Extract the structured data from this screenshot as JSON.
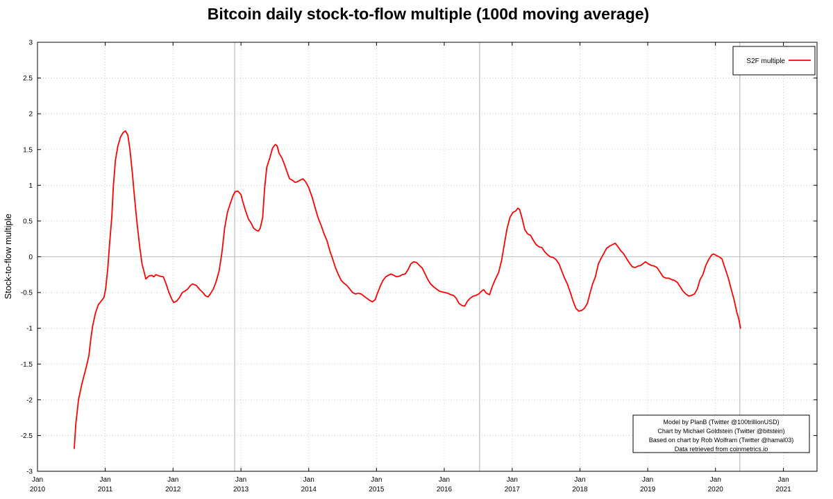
{
  "chart_data": {
    "type": "line",
    "title": "Bitcoin daily stock-to-flow multiple (100d moving average)",
    "xlabel": "",
    "ylabel": "Stock-to-flow multiple",
    "x_range": [
      "2010-01-01",
      "2021-07-01"
    ],
    "ylim": [
      -3,
      3
    ],
    "y_ticks": [
      "3",
      "2.5",
      "2",
      "1.5",
      "1",
      "0.5",
      "0",
      "-0.5",
      "-1",
      "-1.5",
      "-2",
      "-2.5",
      "-3"
    ],
    "y_tick_values": [
      3,
      2.5,
      2,
      1.5,
      1,
      0.5,
      0,
      -0.5,
      -1,
      -1.5,
      -2,
      -2.5,
      -3
    ],
    "x_ticks": [
      {
        "month": "Jan",
        "year": "2010",
        "date": "2010-01-01"
      },
      {
        "month": "Jan",
        "year": "2011",
        "date": "2011-01-01"
      },
      {
        "month": "Jan",
        "year": "2012",
        "date": "2012-01-01"
      },
      {
        "month": "Jan",
        "year": "2013",
        "date": "2013-01-01"
      },
      {
        "month": "Jan",
        "year": "2014",
        "date": "2014-01-01"
      },
      {
        "month": "Jan",
        "year": "2015",
        "date": "2015-01-01"
      },
      {
        "month": "Jan",
        "year": "2016",
        "date": "2016-01-01"
      },
      {
        "month": "Jan",
        "year": "2017",
        "date": "2017-01-01"
      },
      {
        "month": "Jan",
        "year": "2018",
        "date": "2018-01-01"
      },
      {
        "month": "Jan",
        "year": "2019",
        "date": "2019-01-01"
      },
      {
        "month": "Jan",
        "year": "2020",
        "date": "2020-01-01"
      },
      {
        "month": "Jan",
        "year": "2021",
        "date": "2021-01-01"
      }
    ],
    "grid": true,
    "zero_line": true,
    "halving_lines": [
      "2012-11-28",
      "2016-07-09",
      "2020-05-11"
    ],
    "legend": {
      "position": "top-right",
      "entries": [
        {
          "name": "S2F multiple",
          "color": "#ff0000"
        }
      ]
    },
    "annotation_lines": [
      "Model by PlanB (Twitter @100trillionUSD)",
      "Chart by Michael Goldstein (Twitter @bitstein)",
      "Based on chart by Rob Wolfram (Twitter @hamal03)",
      "Data retrieved from coinmetrics.io"
    ],
    "series": [
      {
        "name": "S2F multiple",
        "color": "#ff0000",
        "points": [
          [
            "2010-07-18",
            -2.68
          ],
          [
            "2010-07-26",
            -2.35
          ],
          [
            "2010-08-10",
            -2.0
          ],
          [
            "2010-08-28",
            -1.78
          ],
          [
            "2010-09-20",
            -1.55
          ],
          [
            "2010-10-05",
            -1.38
          ],
          [
            "2010-10-15",
            -1.15
          ],
          [
            "2010-10-25",
            -0.97
          ],
          [
            "2010-11-10",
            -0.78
          ],
          [
            "2010-11-25",
            -0.67
          ],
          [
            "2010-12-10",
            -0.62
          ],
          [
            "2010-12-25",
            -0.57
          ],
          [
            "2011-01-03",
            -0.45
          ],
          [
            "2011-01-15",
            -0.15
          ],
          [
            "2011-01-25",
            0.2
          ],
          [
            "2011-02-05",
            0.55
          ],
          [
            "2011-02-14",
            1.0
          ],
          [
            "2011-02-25",
            1.35
          ],
          [
            "2011-03-10",
            1.55
          ],
          [
            "2011-03-25",
            1.68
          ],
          [
            "2011-04-08",
            1.74
          ],
          [
            "2011-04-20",
            1.76
          ],
          [
            "2011-05-03",
            1.7
          ],
          [
            "2011-05-14",
            1.5
          ],
          [
            "2011-05-28",
            1.15
          ],
          [
            "2011-06-05",
            0.9
          ],
          [
            "2011-06-20",
            0.5
          ],
          [
            "2011-07-05",
            0.15
          ],
          [
            "2011-07-18",
            -0.1
          ],
          [
            "2011-07-30",
            -0.22
          ],
          [
            "2011-08-08",
            -0.31
          ],
          [
            "2011-08-23",
            -0.27
          ],
          [
            "2011-09-08",
            -0.26
          ],
          [
            "2011-09-20",
            -0.28
          ],
          [
            "2011-10-01",
            -0.25
          ],
          [
            "2011-10-20",
            -0.27
          ],
          [
            "2011-11-10",
            -0.28
          ],
          [
            "2011-11-25",
            -0.38
          ],
          [
            "2011-12-10",
            -0.5
          ],
          [
            "2011-12-25",
            -0.59
          ],
          [
            "2012-01-05",
            -0.64
          ],
          [
            "2012-01-20",
            -0.62
          ],
          [
            "2012-02-05",
            -0.57
          ],
          [
            "2012-02-20",
            -0.5
          ],
          [
            "2012-03-05",
            -0.48
          ],
          [
            "2012-03-20",
            -0.45
          ],
          [
            "2012-04-05",
            -0.4
          ],
          [
            "2012-04-15",
            -0.38
          ],
          [
            "2012-05-05",
            -0.4
          ],
          [
            "2012-05-25",
            -0.46
          ],
          [
            "2012-06-10",
            -0.5
          ],
          [
            "2012-06-25",
            -0.55
          ],
          [
            "2012-07-08",
            -0.56
          ],
          [
            "2012-07-20",
            -0.52
          ],
          [
            "2012-08-05",
            -0.45
          ],
          [
            "2012-08-20",
            -0.35
          ],
          [
            "2012-09-05",
            -0.2
          ],
          [
            "2012-09-20",
            0.05
          ],
          [
            "2012-10-05",
            0.4
          ],
          [
            "2012-10-20",
            0.62
          ],
          [
            "2012-11-05",
            0.75
          ],
          [
            "2012-11-20",
            0.86
          ],
          [
            "2012-12-01",
            0.91
          ],
          [
            "2012-12-15",
            0.92
          ],
          [
            "2013-01-01",
            0.87
          ],
          [
            "2013-01-10",
            0.78
          ],
          [
            "2013-01-25",
            0.65
          ],
          [
            "2013-02-10",
            0.53
          ],
          [
            "2013-02-25",
            0.47
          ],
          [
            "2013-03-10",
            0.4
          ],
          [
            "2013-03-25",
            0.37
          ],
          [
            "2013-04-05",
            0.36
          ],
          [
            "2013-04-15",
            0.4
          ],
          [
            "2013-04-28",
            0.55
          ],
          [
            "2013-05-08",
            0.95
          ],
          [
            "2013-05-20",
            1.25
          ],
          [
            "2013-06-05",
            1.38
          ],
          [
            "2013-06-20",
            1.52
          ],
          [
            "2013-07-05",
            1.57
          ],
          [
            "2013-07-15",
            1.55
          ],
          [
            "2013-07-25",
            1.45
          ],
          [
            "2013-08-10",
            1.38
          ],
          [
            "2013-08-25",
            1.28
          ],
          [
            "2013-09-10",
            1.16
          ],
          [
            "2013-09-20",
            1.09
          ],
          [
            "2013-10-05",
            1.07
          ],
          [
            "2013-10-20",
            1.04
          ],
          [
            "2013-11-01",
            1.05
          ],
          [
            "2013-11-15",
            1.07
          ],
          [
            "2013-12-01",
            1.09
          ],
          [
            "2013-12-15",
            1.05
          ],
          [
            "2014-01-01",
            0.97
          ],
          [
            "2014-01-20",
            0.83
          ],
          [
            "2014-02-05",
            0.68
          ],
          [
            "2014-02-20",
            0.55
          ],
          [
            "2014-03-10",
            0.43
          ],
          [
            "2014-03-25",
            0.32
          ],
          [
            "2014-04-10",
            0.22
          ],
          [
            "2014-04-25",
            0.08
          ],
          [
            "2014-05-10",
            -0.03
          ],
          [
            "2014-05-25",
            -0.15
          ],
          [
            "2014-06-10",
            -0.25
          ],
          [
            "2014-06-25",
            -0.33
          ],
          [
            "2014-07-10",
            -0.37
          ],
          [
            "2014-07-25",
            -0.4
          ],
          [
            "2014-08-10",
            -0.45
          ],
          [
            "2014-08-25",
            -0.5
          ],
          [
            "2014-09-10",
            -0.52
          ],
          [
            "2014-09-25",
            -0.51
          ],
          [
            "2014-10-10",
            -0.52
          ],
          [
            "2014-10-25",
            -0.55
          ],
          [
            "2014-11-10",
            -0.58
          ],
          [
            "2014-11-25",
            -0.61
          ],
          [
            "2014-12-10",
            -0.63
          ],
          [
            "2014-12-25",
            -0.6
          ],
          [
            "2015-01-05",
            -0.52
          ],
          [
            "2015-01-20",
            -0.42
          ],
          [
            "2015-02-05",
            -0.33
          ],
          [
            "2015-02-20",
            -0.28
          ],
          [
            "2015-03-05",
            -0.26
          ],
          [
            "2015-03-20",
            -0.24
          ],
          [
            "2015-04-05",
            -0.26
          ],
          [
            "2015-04-20",
            -0.28
          ],
          [
            "2015-05-05",
            -0.27
          ],
          [
            "2015-05-20",
            -0.25
          ],
          [
            "2015-06-05",
            -0.24
          ],
          [
            "2015-06-20",
            -0.18
          ],
          [
            "2015-07-05",
            -0.1
          ],
          [
            "2015-07-20",
            -0.07
          ],
          [
            "2015-08-05",
            -0.08
          ],
          [
            "2015-08-20",
            -0.12
          ],
          [
            "2015-09-05",
            -0.16
          ],
          [
            "2015-09-20",
            -0.24
          ],
          [
            "2015-10-05",
            -0.32
          ],
          [
            "2015-10-20",
            -0.38
          ],
          [
            "2015-11-05",
            -0.42
          ],
          [
            "2015-11-20",
            -0.45
          ],
          [
            "2015-12-05",
            -0.48
          ],
          [
            "2015-12-20",
            -0.49
          ],
          [
            "2016-01-05",
            -0.5
          ],
          [
            "2016-01-20",
            -0.51
          ],
          [
            "2016-02-05",
            -0.53
          ],
          [
            "2016-02-20",
            -0.54
          ],
          [
            "2016-03-05",
            -0.58
          ],
          [
            "2016-03-20",
            -0.65
          ],
          [
            "2016-04-05",
            -0.68
          ],
          [
            "2016-04-20",
            -0.69
          ],
          [
            "2016-05-05",
            -0.62
          ],
          [
            "2016-05-20",
            -0.58
          ],
          [
            "2016-06-05",
            -0.55
          ],
          [
            "2016-06-20",
            -0.54
          ],
          [
            "2016-07-05",
            -0.52
          ],
          [
            "2016-07-20",
            -0.48
          ],
          [
            "2016-08-01",
            -0.46
          ],
          [
            "2016-08-15",
            -0.51
          ],
          [
            "2016-09-01",
            -0.53
          ],
          [
            "2016-09-15",
            -0.42
          ],
          [
            "2016-10-01",
            -0.32
          ],
          [
            "2016-10-20",
            -0.22
          ],
          [
            "2016-11-05",
            -0.05
          ],
          [
            "2016-11-20",
            0.18
          ],
          [
            "2016-12-05",
            0.4
          ],
          [
            "2016-12-20",
            0.55
          ],
          [
            "2017-01-05",
            0.62
          ],
          [
            "2017-01-20",
            0.64
          ],
          [
            "2017-02-01",
            0.68
          ],
          [
            "2017-02-10",
            0.66
          ],
          [
            "2017-02-25",
            0.52
          ],
          [
            "2017-03-10",
            0.38
          ],
          [
            "2017-03-25",
            0.32
          ],
          [
            "2017-04-10",
            0.3
          ],
          [
            "2017-04-25",
            0.23
          ],
          [
            "2017-05-10",
            0.17
          ],
          [
            "2017-05-25",
            0.14
          ],
          [
            "2017-06-10",
            0.13
          ],
          [
            "2017-06-25",
            0.07
          ],
          [
            "2017-07-10",
            0.03
          ],
          [
            "2017-07-25",
            0.0
          ],
          [
            "2017-08-10",
            -0.01
          ],
          [
            "2017-08-25",
            -0.04
          ],
          [
            "2017-09-10",
            -0.1
          ],
          [
            "2017-09-25",
            -0.2
          ],
          [
            "2017-10-10",
            -0.3
          ],
          [
            "2017-10-25",
            -0.38
          ],
          [
            "2017-11-10",
            -0.5
          ],
          [
            "2017-11-25",
            -0.62
          ],
          [
            "2017-12-10",
            -0.72
          ],
          [
            "2017-12-25",
            -0.76
          ],
          [
            "2018-01-10",
            -0.75
          ],
          [
            "2018-01-25",
            -0.72
          ],
          [
            "2018-02-10",
            -0.65
          ],
          [
            "2018-02-25",
            -0.5
          ],
          [
            "2018-03-10",
            -0.38
          ],
          [
            "2018-03-25",
            -0.28
          ],
          [
            "2018-04-10",
            -0.1
          ],
          [
            "2018-04-25",
            -0.02
          ],
          [
            "2018-05-10",
            0.05
          ],
          [
            "2018-05-25",
            0.12
          ],
          [
            "2018-06-10",
            0.15
          ],
          [
            "2018-06-25",
            0.17
          ],
          [
            "2018-07-10",
            0.19
          ],
          [
            "2018-07-25",
            0.14
          ],
          [
            "2018-08-10",
            0.08
          ],
          [
            "2018-08-25",
            0.04
          ],
          [
            "2018-09-10",
            -0.03
          ],
          [
            "2018-09-25",
            -0.09
          ],
          [
            "2018-10-10",
            -0.14
          ],
          [
            "2018-10-25",
            -0.15
          ],
          [
            "2018-11-10",
            -0.13
          ],
          [
            "2018-11-25",
            -0.12
          ],
          [
            "2018-12-10",
            -0.09
          ],
          [
            "2018-12-20",
            -0.07
          ],
          [
            "2019-01-05",
            -0.1
          ],
          [
            "2019-01-20",
            -0.12
          ],
          [
            "2019-02-05",
            -0.13
          ],
          [
            "2019-02-20",
            -0.15
          ],
          [
            "2019-03-10",
            -0.22
          ],
          [
            "2019-03-25",
            -0.28
          ],
          [
            "2019-04-10",
            -0.3
          ],
          [
            "2019-04-25",
            -0.3
          ],
          [
            "2019-05-10",
            -0.32
          ],
          [
            "2019-05-25",
            -0.33
          ],
          [
            "2019-06-10",
            -0.36
          ],
          [
            "2019-06-25",
            -0.42
          ],
          [
            "2019-07-10",
            -0.48
          ],
          [
            "2019-07-25",
            -0.52
          ],
          [
            "2019-08-10",
            -0.55
          ],
          [
            "2019-08-25",
            -0.54
          ],
          [
            "2019-09-10",
            -0.52
          ],
          [
            "2019-09-25",
            -0.45
          ],
          [
            "2019-10-10",
            -0.32
          ],
          [
            "2019-10-25",
            -0.25
          ],
          [
            "2019-11-10",
            -0.12
          ],
          [
            "2019-11-25",
            -0.04
          ],
          [
            "2019-12-10",
            0.02
          ],
          [
            "2019-12-20",
            0.04
          ],
          [
            "2020-01-05",
            0.02
          ],
          [
            "2020-01-20",
            0.0
          ],
          [
            "2020-02-05",
            -0.03
          ],
          [
            "2020-02-20",
            -0.15
          ],
          [
            "2020-03-10",
            -0.3
          ],
          [
            "2020-03-25",
            -0.45
          ],
          [
            "2020-04-10",
            -0.6
          ],
          [
            "2020-04-25",
            -0.78
          ],
          [
            "2020-05-05",
            -0.86
          ],
          [
            "2020-05-15",
            -1.0
          ]
        ]
      }
    ]
  }
}
